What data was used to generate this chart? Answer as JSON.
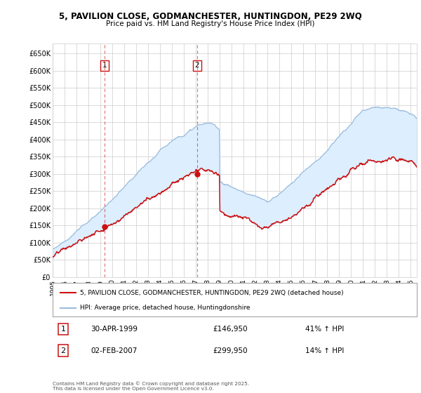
{
  "title1": "5, PAVILION CLOSE, GODMANCHESTER, HUNTINGDON, PE29 2WQ",
  "title2": "Price paid vs. HM Land Registry's House Price Index (HPI)",
  "xlim_start": 1995.0,
  "xlim_end": 2025.5,
  "ylim_min": 0,
  "ylim_max": 680000,
  "yticks": [
    0,
    50000,
    100000,
    150000,
    200000,
    250000,
    300000,
    350000,
    400000,
    450000,
    500000,
    550000,
    600000,
    650000
  ],
  "ytick_labels": [
    "£0",
    "£50K",
    "£100K",
    "£150K",
    "£200K",
    "£250K",
    "£300K",
    "£350K",
    "£400K",
    "£450K",
    "£500K",
    "£550K",
    "£600K",
    "£650K"
  ],
  "hpi_color": "#99bbdd",
  "fill_color": "#ddeeff",
  "price_color": "#cc1111",
  "vline1_x": 1999.33,
  "vline2_x": 2007.09,
  "marker1_x": 1999.33,
  "marker1_y": 146950,
  "marker2_x": 2007.09,
  "marker2_y": 299950,
  "legend_label1": "5, PAVILION CLOSE, GODMANCHESTER, HUNTINGDON, PE29 2WQ (detached house)",
  "legend_label2": "HPI: Average price, detached house, Huntingdonshire",
  "annotation1_num": "1",
  "annotation1_date": "30-APR-1999",
  "annotation1_price": "£146,950",
  "annotation1_hpi": "41% ↑ HPI",
  "annotation2_num": "2",
  "annotation2_date": "02-FEB-2007",
  "annotation2_price": "£299,950",
  "annotation2_hpi": "14% ↑ HPI",
  "footer": "Contains HM Land Registry data © Crown copyright and database right 2025.\nThis data is licensed under the Open Government Licence v3.0.",
  "background_color": "#ffffff",
  "grid_color": "#cccccc"
}
